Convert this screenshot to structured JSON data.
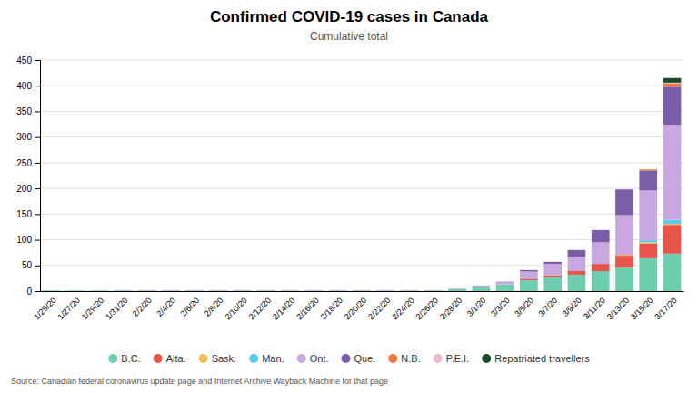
{
  "chart_data": {
    "type": "bar",
    "title": "Confirmed COVID-19 cases in Canada",
    "subtitle": "Cumulative total",
    "source": "Source: Canadian federal coronavirus update page and Internet Archive Wayback Machine for that page",
    "categories": [
      "1/25/20",
      "1/27/20",
      "1/29/20",
      "1/31/20",
      "2/2/20",
      "2/4/20",
      "2/6/20",
      "2/8/20",
      "2/10/20",
      "2/12/20",
      "2/14/20",
      "2/16/20",
      "2/18/20",
      "2/20/20",
      "2/22/20",
      "2/24/20",
      "2/26/20",
      "2/28/20",
      "3/1/20",
      "3/3/20",
      "3/5/20",
      "3/7/20",
      "3/9/20",
      "3/11/20",
      "3/13/20",
      "3/15/20",
      "3/17/20"
    ],
    "series": [
      {
        "name": "B.C.",
        "color": "#6ecfb0",
        "values": [
          1,
          1,
          1,
          1,
          1,
          1,
          1,
          1,
          1,
          1,
          1,
          1,
          1,
          1,
          1,
          1,
          1,
          4,
          8,
          13,
          21,
          27,
          32,
          39,
          46,
          64,
          73
        ]
      },
      {
        "name": "Alta.",
        "color": "#e8534a",
        "values": [
          0,
          0,
          0,
          0,
          0,
          0,
          0,
          0,
          0,
          0,
          0,
          0,
          0,
          0,
          0,
          0,
          0,
          0,
          0,
          0,
          2,
          4,
          7,
          14,
          23,
          29,
          56
        ]
      },
      {
        "name": "Sask.",
        "color": "#f0c04a",
        "values": [
          0,
          0,
          0,
          0,
          0,
          0,
          0,
          0,
          0,
          0,
          0,
          0,
          0,
          0,
          0,
          0,
          0,
          0,
          0,
          0,
          0,
          0,
          0,
          0,
          2,
          2,
          2
        ]
      },
      {
        "name": "Man.",
        "color": "#5bc8ef",
        "values": [
          0,
          0,
          0,
          0,
          0,
          0,
          0,
          0,
          0,
          0,
          0,
          0,
          0,
          0,
          0,
          0,
          0,
          0,
          0,
          0,
          0,
          0,
          0,
          0,
          0,
          4,
          8
        ]
      },
      {
        "name": "Ont.",
        "color": "#c8a8e0",
        "values": [
          0,
          0,
          0,
          1,
          1,
          1,
          1,
          1,
          1,
          1,
          1,
          1,
          1,
          1,
          1,
          1,
          1,
          1,
          3,
          6,
          15,
          22,
          28,
          42,
          77,
          97,
          185
        ]
      },
      {
        "name": "Que.",
        "color": "#7b5ea7",
        "values": [
          0,
          0,
          0,
          0,
          0,
          0,
          0,
          0,
          0,
          0,
          0,
          0,
          0,
          0,
          0,
          0,
          0,
          0,
          0,
          0,
          3,
          4,
          13,
          24,
          50,
          39,
          74
        ]
      },
      {
        "name": "N.B.",
        "color": "#f07840",
        "values": [
          0,
          0,
          0,
          0,
          0,
          0,
          0,
          0,
          0,
          0,
          0,
          0,
          0,
          0,
          0,
          0,
          0,
          0,
          0,
          0,
          0,
          0,
          0,
          0,
          0,
          2,
          6
        ]
      },
      {
        "name": "P.E.I.",
        "color": "#f0b8c8",
        "values": [
          0,
          0,
          0,
          0,
          0,
          0,
          0,
          0,
          0,
          0,
          0,
          0,
          0,
          0,
          0,
          0,
          0,
          0,
          0,
          0,
          0,
          0,
          0,
          0,
          0,
          0,
          2
        ]
      },
      {
        "name": "Repatriated travellers",
        "color": "#1a4a2a",
        "values": [
          0,
          0,
          0,
          0,
          0,
          0,
          0,
          0,
          0,
          0,
          0,
          0,
          0,
          0,
          0,
          0,
          0,
          0,
          0,
          0,
          0,
          0,
          0,
          0,
          0,
          0,
          9
        ]
      }
    ],
    "ylim": [
      0,
      450
    ],
    "yticks": [
      0,
      50,
      100,
      150,
      200,
      250,
      300,
      350,
      400,
      450
    ],
    "grid": true,
    "stacked": true,
    "legend": "bottom"
  }
}
